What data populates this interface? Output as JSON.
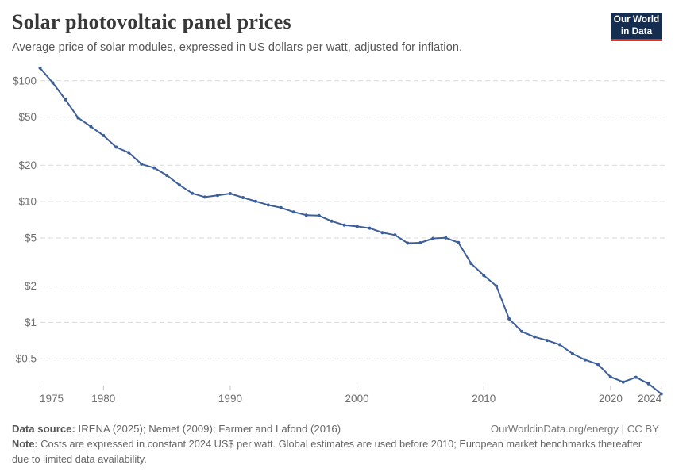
{
  "header": {
    "title": "Solar photovoltaic panel prices",
    "subtitle": "Average price of solar modules, expressed in US dollars per watt, adjusted for inflation.",
    "logo": {
      "line1": "Our World",
      "line2": "in Data",
      "bg_color": "#152D4E",
      "bar_color": "#E0342B"
    }
  },
  "chart_data": {
    "type": "line",
    "title": "Solar photovoltaic panel prices",
    "xlabel": "",
    "ylabel": "US dollars per watt",
    "yscale": "log",
    "grid": "horizontal dashed",
    "legend_position": "none",
    "line_color": "#3D5F99",
    "marker": "circle",
    "x": [
      1975,
      1976,
      1977,
      1978,
      1979,
      1980,
      1981,
      1982,
      1983,
      1984,
      1985,
      1986,
      1987,
      1988,
      1989,
      1990,
      1991,
      1992,
      1993,
      1994,
      1995,
      1996,
      1997,
      1998,
      1999,
      2000,
      2001,
      2002,
      2003,
      2004,
      2005,
      2006,
      2007,
      2008,
      2009,
      2010,
      2011,
      2012,
      2013,
      2014,
      2015,
      2016,
      2017,
      2018,
      2019,
      2020,
      2021,
      2022,
      2023,
      2024
    ],
    "series": [
      {
        "name": "Average price of solar modules (US$ per watt)",
        "values": [
          127.3,
          96.2,
          69.8,
          49.3,
          41.8,
          35.2,
          28.2,
          25.4,
          20.4,
          19.0,
          16.5,
          13.7,
          11.7,
          10.9,
          11.25,
          11.65,
          10.8,
          10.06,
          9.37,
          8.9,
          8.2,
          7.72,
          7.65,
          6.88,
          6.39,
          6.23,
          6.03,
          5.54,
          5.28,
          4.53,
          4.56,
          4.96,
          5.01,
          4.58,
          3.07,
          2.45,
          2.0,
          1.07,
          0.84,
          0.76,
          0.71,
          0.655,
          0.55,
          0.49,
          0.45,
          0.354,
          0.321,
          0.351,
          0.311,
          0.256
        ]
      }
    ],
    "xlim": [
      1975,
      2024
    ],
    "ylim": [
      0.24,
      135
    ],
    "xticks": [
      1975,
      1980,
      1990,
      2000,
      2010,
      2020,
      2024
    ],
    "yticks": [
      {
        "value": 100,
        "label": "$100"
      },
      {
        "value": 50,
        "label": "$50"
      },
      {
        "value": 20,
        "label": "$20"
      },
      {
        "value": 10,
        "label": "$10"
      },
      {
        "value": 5,
        "label": "$5"
      },
      {
        "value": 2,
        "label": "$2"
      },
      {
        "value": 1,
        "label": "$1"
      },
      {
        "value": 0.5,
        "label": "$0.5"
      }
    ]
  },
  "footer": {
    "source_label": "Data source:",
    "source_text": " IRENA (2025); Nemet (2009); Farmer and Lafond (2016)",
    "link_text": "OurWorldinData.org/energy | CC BY",
    "note_label": "Note:",
    "note_text": " Costs are expressed in constant 2024 US$ per watt. Global estimates are used before 2010; European market benchmarks thereafter due to limited data availability."
  }
}
